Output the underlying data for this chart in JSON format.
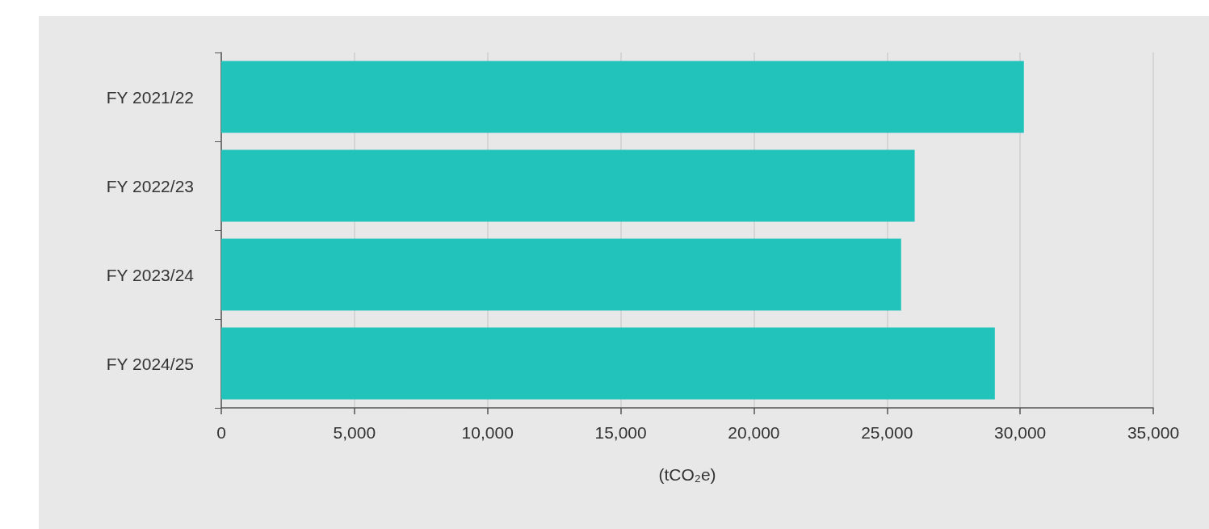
{
  "chart_data": {
    "type": "bar",
    "orientation": "horizontal",
    "xlabel": "(tCO₂e)",
    "categories": [
      "FY 2021/22",
      "FY 2022/23",
      "FY 2023/24",
      "FY 2024/25"
    ],
    "values": [
      30140,
      26040,
      25530,
      29050
    ],
    "color": "#22c3bb",
    "xlim": [
      0,
      35000
    ],
    "xticks": [
      0,
      {
        "value": 5000,
        "label": "5,000"
      },
      {
        "value": 10000,
        "label": "10,000"
      },
      {
        "value": 15000,
        "label": "15,000"
      },
      {
        "value": 20000,
        "label": "20,000"
      },
      {
        "value": 25000,
        "label": "25,000"
      },
      {
        "value": 30000,
        "label": "30,000"
      },
      {
        "value": 35000,
        "label": "35,000"
      }
    ],
    "grid": "x"
  }
}
